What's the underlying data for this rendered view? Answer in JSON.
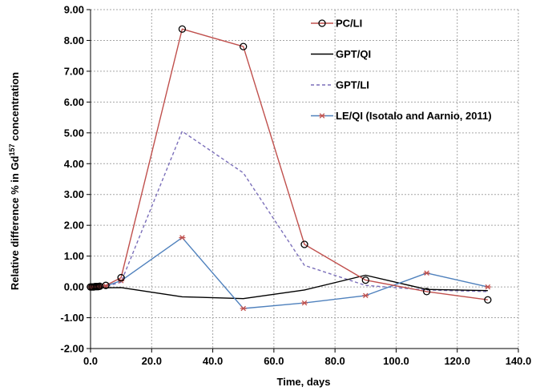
{
  "chart_data": {
    "type": "line",
    "xlabel": "Time, days",
    "ylabel_parts": {
      "prefix": "Relative difference % in Gd",
      "superscript": "157",
      "suffix": " concentration"
    },
    "xlim": [
      0,
      140
    ],
    "ylim": [
      -2,
      9
    ],
    "x_ticks": [
      "0.0",
      "20.0",
      "40.0",
      "60.0",
      "80.0",
      "100.0",
      "120.0",
      "140.0"
    ],
    "y_ticks": [
      "-2.00",
      "-1.00",
      "0.00",
      "1.00",
      "2.00",
      "3.00",
      "4.00",
      "5.00",
      "6.00",
      "7.00",
      "8.00",
      "9.00"
    ],
    "grid": true,
    "legend_position": "top-right",
    "series": [
      {
        "name": "PC/LI",
        "color": "#c0504d",
        "line_style": "solid",
        "marker": "circle",
        "x": [
          0,
          0.5,
          1,
          1.5,
          2,
          2.5,
          3,
          5,
          10,
          30,
          50,
          70,
          90,
          110,
          130
        ],
        "y": [
          0,
          0,
          0,
          0.01,
          0.01,
          0.01,
          0.02,
          0.05,
          0.3,
          8.37,
          7.8,
          1.38,
          0.22,
          -0.15,
          -0.42
        ]
      },
      {
        "name": "GPT/QI",
        "color": "#000000",
        "line_style": "solid",
        "marker": "none",
        "x": [
          0,
          5,
          10,
          30,
          50,
          70,
          90,
          110,
          130
        ],
        "y": [
          0,
          -0.03,
          -0.02,
          -0.32,
          -0.38,
          -0.1,
          0.38,
          -0.08,
          -0.12
        ]
      },
      {
        "name": "GPT/LI",
        "color": "#7b6fba",
        "line_style": "dashed",
        "marker": "none",
        "x": [
          0,
          5,
          10,
          30,
          50,
          70,
          90,
          110,
          130
        ],
        "y": [
          0,
          0.02,
          0.15,
          5.05,
          3.7,
          0.7,
          0.05,
          -0.1,
          -0.15
        ]
      },
      {
        "name": "LE/QI (Isotalo and Aarnio, 2011)",
        "color": "#4f81bd",
        "marker_color": "#c0504d",
        "line_style": "solid",
        "marker": "asterisk",
        "x": [
          0,
          0.5,
          1,
          1.5,
          2,
          2.5,
          3,
          5,
          10,
          30,
          50,
          70,
          90,
          110,
          130
        ],
        "y": [
          0,
          0,
          0,
          0,
          0.01,
          0.01,
          0.01,
          0.03,
          0.2,
          1.6,
          -0.7,
          -0.52,
          -0.28,
          0.45,
          0.0
        ]
      }
    ]
  }
}
